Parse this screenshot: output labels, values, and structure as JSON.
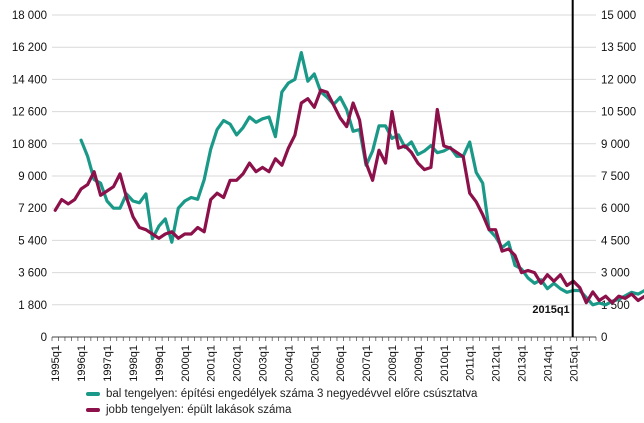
{
  "chart_data": {
    "type": "line",
    "title": "",
    "xlabel": "",
    "ylabel": "",
    "left_axis": {
      "min": 0,
      "max": 18000,
      "step": 1800,
      "tick_labels": [
        "0",
        "1 800",
        "3 600",
        "5 400",
        "7 200",
        "9 000",
        "10 800",
        "12 600",
        "14 400",
        "16 200",
        "18 000"
      ]
    },
    "right_axis": {
      "min": 0,
      "max": 15000,
      "step": 1500,
      "tick_labels": [
        "0",
        "1 500",
        "3 000",
        "4 500",
        "6 000",
        "7 500",
        "9 000",
        "10 500",
        "12 000",
        "13 500",
        "15 000"
      ]
    },
    "x_start_year": 1995,
    "x_tick_labels": [
      "1995q1",
      "1996q1",
      "1997q1",
      "1998q1",
      "1999q1",
      "2000q1",
      "2001q1",
      "2002q1",
      "2003q1",
      "2004q1",
      "2005q1",
      "2006q1",
      "2007q1",
      "2008q1",
      "2009q1",
      "2010q1",
      "2011q1",
      "2012q1",
      "2013q1",
      "2014q1",
      "2015q1"
    ],
    "vertical_marker": {
      "period": "2015q1",
      "label": "2015q1"
    },
    "grid": true,
    "legend_position": "bottom",
    "series": [
      {
        "name": "bal tengelyen: építési engedélyek száma 3 negyedévvel előre csúsztatva",
        "axis": "left",
        "color": "#1a9988",
        "start": "1996q1",
        "values": [
          11000,
          10100,
          8800,
          8600,
          7600,
          7200,
          7200,
          8000,
          7600,
          7500,
          8000,
          5500,
          6200,
          6600,
          5300,
          7200,
          7600,
          7800,
          7700,
          8800,
          10500,
          11600,
          12100,
          11900,
          11300,
          11700,
          12300,
          12000,
          12200,
          12300,
          11200,
          13700,
          14200,
          14400,
          15900,
          14300,
          14700,
          13700,
          13400,
          13000,
          13400,
          12700,
          11500,
          11600,
          9600,
          10400,
          11800,
          11800,
          11100,
          11300,
          10600,
          10900,
          10200,
          10400,
          10700,
          10300,
          10400,
          10600,
          10100,
          10100,
          10900,
          9200,
          8600,
          6000,
          5600,
          5000,
          5300,
          4000,
          3800,
          3300,
          3000,
          3200,
          2700,
          3000,
          2700,
          2500,
          2600,
          2600,
          2200,
          1800,
          1900,
          1800,
          2000,
          2100,
          2300,
          2500,
          2400,
          2600,
          2900
        ]
      },
      {
        "name": "jobb tengelyen: épült lakások száma",
        "axis": "right",
        "color": "#8c1049",
        "start": "1995q1",
        "values": [
          5900,
          6400,
          6200,
          6400,
          6900,
          7100,
          7700,
          6600,
          6800,
          7000,
          7600,
          6500,
          5600,
          5100,
          5000,
          4800,
          4600,
          4800,
          4900,
          4600,
          4800,
          4800,
          5100,
          4900,
          6400,
          6700,
          6500,
          7300,
          7300,
          7600,
          8100,
          7700,
          7900,
          7700,
          8300,
          8000,
          8800,
          9400,
          10900,
          11100,
          10700,
          11500,
          11400,
          10800,
          10200,
          9800,
          10900,
          10100,
          8100,
          7300,
          8700,
          8100,
          10500,
          8800,
          8900,
          8600,
          8100,
          7800,
          7900,
          10600,
          8900,
          8800,
          8600,
          8400,
          6700,
          6300,
          5700,
          5000,
          5000,
          4000,
          4100,
          3800,
          3000,
          3100,
          3000,
          2500,
          2900,
          2600,
          2900,
          2400,
          2600,
          2300,
          1600,
          2100,
          1700,
          1900,
          1600,
          1900,
          1800,
          2000,
          1700,
          1900,
          1700,
          1900,
          1800,
          1900,
          1700,
          1800,
          2000
        ]
      }
    ]
  },
  "legend": {
    "left_series_label": "bal tengelyen: építési engedélyek száma 3 negyedévvel előre csúsztatva",
    "right_series_label": "jobb tengelyen: épült lakások száma"
  }
}
